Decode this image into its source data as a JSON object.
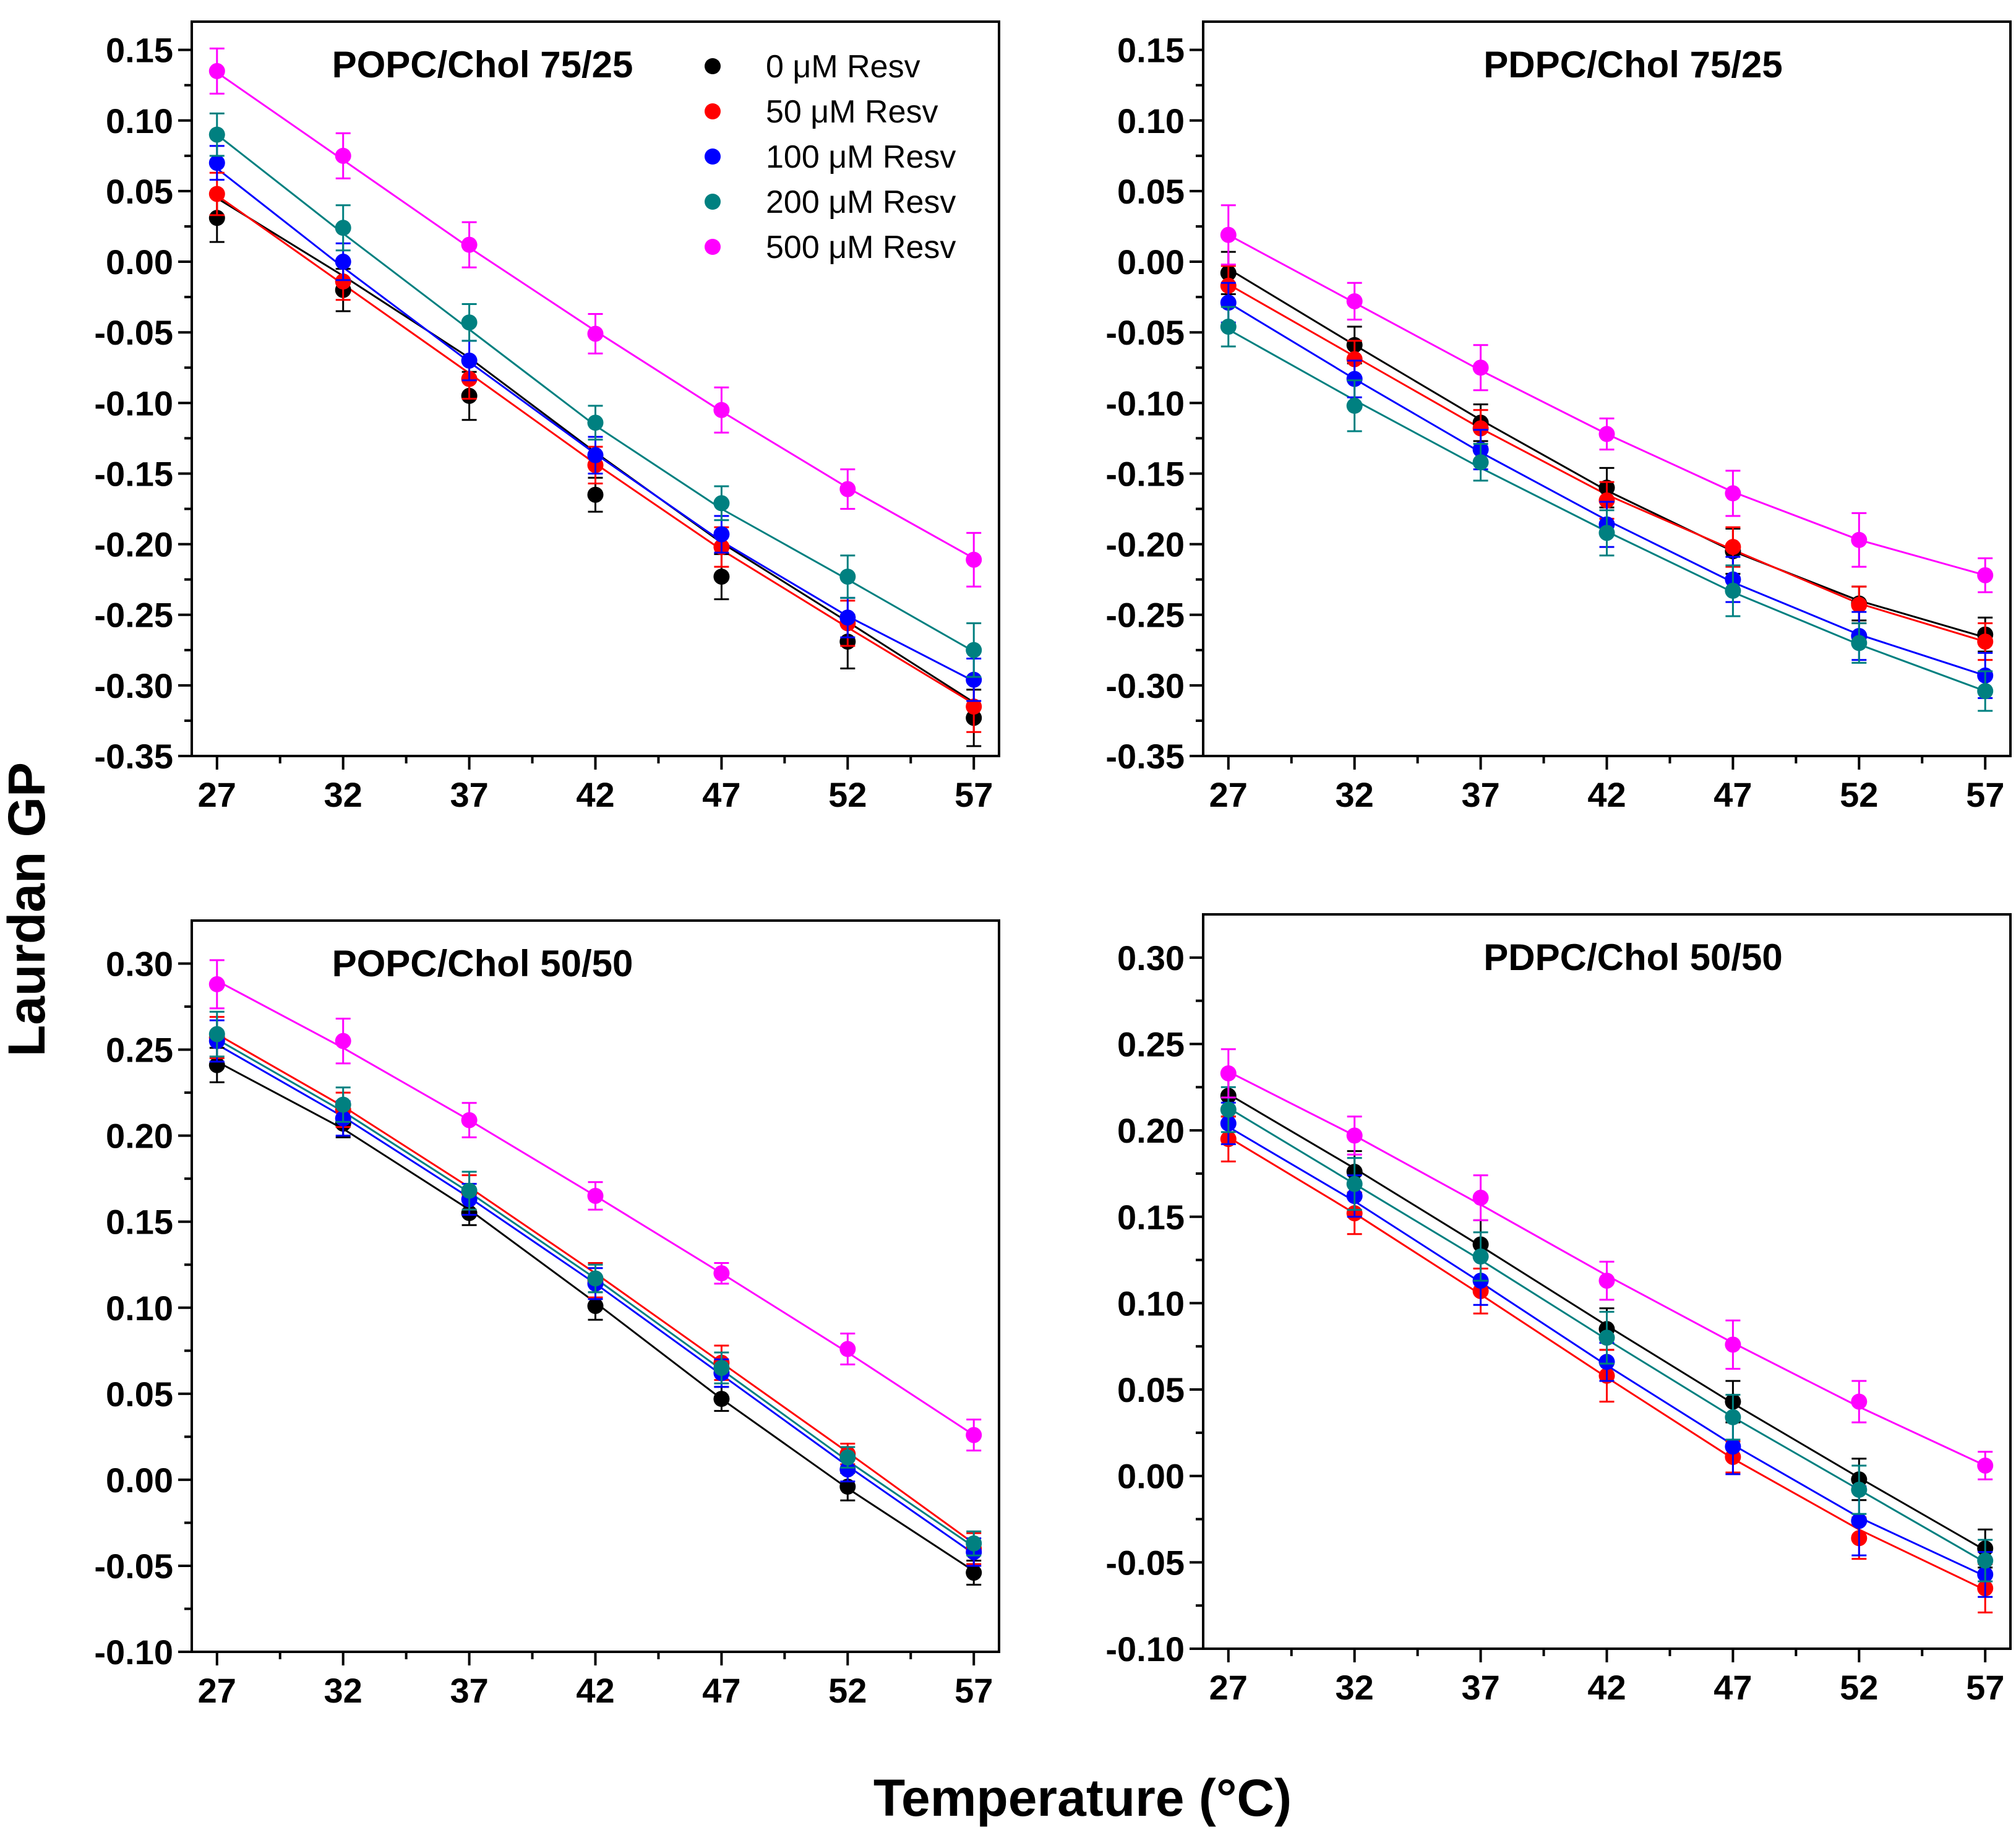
{
  "figure": {
    "ylabel": "Laurdan GP",
    "xlabel": "Temperature (°C)"
  },
  "chart_data": [
    {
      "type": "scatter",
      "title": "POPC/Chol 75/25",
      "x": [
        27,
        32,
        37,
        42,
        47,
        52,
        57
      ],
      "xticks": [
        "27",
        "32",
        "37",
        "42",
        "47",
        "52",
        "57"
      ],
      "xlim": [
        26,
        58
      ],
      "ylim": [
        -0.35,
        0.17
      ],
      "yticks": [
        "0.15",
        "0.10",
        "0.05",
        "0.00",
        "-0.05",
        "-0.10",
        "-0.15",
        "-0.20",
        "-0.25",
        "-0.30",
        "-0.35"
      ],
      "ytick_values": [
        0.15,
        0.1,
        0.05,
        0.0,
        -0.05,
        -0.1,
        -0.15,
        -0.2,
        -0.25,
        -0.3,
        -0.35
      ],
      "legend_position": "top-right",
      "series": [
        {
          "name": "0 μM Resv",
          "color": "#000000",
          "values": [
            0.031,
            -0.02,
            -0.095,
            -0.165,
            -0.223,
            -0.269,
            -0.323
          ],
          "errors": [
            0.017,
            0.015,
            0.017,
            0.012,
            0.016,
            0.019,
            0.02
          ],
          "fit": [
            0.045,
            -0.01,
            -0.068,
            -0.135,
            -0.199,
            -0.255,
            -0.312
          ]
        },
        {
          "name": "50 μM Resv",
          "color": "#ff0000",
          "values": [
            0.048,
            -0.014,
            -0.083,
            -0.144,
            -0.202,
            -0.256,
            -0.315
          ],
          "errors": [
            0.015,
            0.013,
            0.014,
            0.013,
            0.014,
            0.016,
            0.018
          ],
          "fit": [
            0.047,
            -0.016,
            -0.079,
            -0.143,
            -0.204,
            -0.259,
            -0.313
          ]
        },
        {
          "name": "100 μM Resv",
          "color": "#0000ff",
          "values": [
            0.07,
            0.0,
            -0.07,
            -0.137,
            -0.193,
            -0.252,
            -0.296
          ],
          "errors": [
            0.012,
            0.013,
            0.014,
            0.013,
            0.013,
            0.014,
            0.015
          ],
          "fit": [
            0.066,
            -0.004,
            -0.071,
            -0.136,
            -0.198,
            -0.251,
            -0.297
          ]
        },
        {
          "name": "200 μM Resv",
          "color": "#008080",
          "values": [
            0.09,
            0.024,
            -0.043,
            -0.114,
            -0.171,
            -0.223,
            -0.275
          ],
          "errors": [
            0.015,
            0.016,
            0.013,
            0.012,
            0.012,
            0.015,
            0.019
          ],
          "fit": [
            0.09,
            0.02,
            -0.048,
            -0.116,
            -0.175,
            -0.225,
            -0.276
          ]
        },
        {
          "name": "500 μM Resv",
          "color": "#ff00ff",
          "values": [
            0.135,
            0.075,
            0.012,
            -0.051,
            -0.105,
            -0.161,
            -0.211
          ],
          "errors": [
            0.016,
            0.016,
            0.016,
            0.014,
            0.016,
            0.014,
            0.019
          ],
          "fit": [
            0.134,
            0.072,
            0.01,
            -0.049,
            -0.106,
            -0.16,
            -0.21
          ]
        }
      ]
    },
    {
      "type": "scatter",
      "title": "PDPC/Chol 75/25",
      "x": [
        27,
        32,
        37,
        42,
        47,
        52,
        57
      ],
      "xticks": [
        "27",
        "32",
        "37",
        "42",
        "47",
        "52",
        "57"
      ],
      "xlim": [
        26,
        58
      ],
      "ylim": [
        -0.35,
        0.17
      ],
      "yticks": [
        "0.15",
        "0.10",
        "0.05",
        "0.00",
        "-0.05",
        "-0.10",
        "-0.15",
        "-0.20",
        "-0.25",
        "-0.30",
        "-0.35"
      ],
      "ytick_values": [
        0.15,
        0.1,
        0.05,
        0.0,
        -0.05,
        -0.1,
        -0.15,
        -0.2,
        -0.25,
        -0.3,
        -0.35
      ],
      "series": [
        {
          "name": "0 μM Resv",
          "color": "#000000",
          "values": [
            -0.008,
            -0.059,
            -0.114,
            -0.16,
            -0.205,
            -0.242,
            -0.264
          ],
          "errors": [
            0.015,
            0.013,
            0.013,
            0.014,
            0.016,
            0.012,
            0.012
          ],
          "fit": [
            -0.005,
            -0.059,
            -0.112,
            -0.162,
            -0.205,
            -0.24,
            -0.266
          ]
        },
        {
          "name": "50 μM Resv",
          "color": "#ff0000",
          "values": [
            -0.017,
            -0.069,
            -0.118,
            -0.169,
            -0.202,
            -0.243,
            -0.269
          ],
          "errors": [
            0.014,
            0.013,
            0.013,
            0.013,
            0.014,
            0.013,
            0.013
          ],
          "fit": [
            -0.016,
            -0.067,
            -0.118,
            -0.165,
            -0.204,
            -0.242,
            -0.269
          ]
        },
        {
          "name": "100 μM Resv",
          "color": "#0000ff",
          "values": [
            -0.029,
            -0.083,
            -0.133,
            -0.186,
            -0.225,
            -0.265,
            -0.293
          ],
          "errors": [
            0.014,
            0.013,
            0.014,
            0.016,
            0.016,
            0.017,
            0.016
          ],
          "fit": [
            -0.029,
            -0.083,
            -0.135,
            -0.183,
            -0.227,
            -0.264,
            -0.293
          ]
        },
        {
          "name": "200 μM Resv",
          "color": "#008080",
          "values": [
            -0.046,
            -0.102,
            -0.142,
            -0.192,
            -0.233,
            -0.27,
            -0.304
          ],
          "errors": [
            0.014,
            0.018,
            0.013,
            0.016,
            0.018,
            0.014,
            0.014
          ],
          "fit": [
            -0.048,
            -0.098,
            -0.146,
            -0.191,
            -0.234,
            -0.271,
            -0.304
          ]
        },
        {
          "name": "500 μM Resv",
          "color": "#ff00ff",
          "values": [
            0.019,
            -0.028,
            -0.075,
            -0.122,
            -0.164,
            -0.197,
            -0.222
          ],
          "errors": [
            0.021,
            0.013,
            0.016,
            0.011,
            0.016,
            0.019,
            0.012
          ],
          "fit": [
            0.019,
            -0.029,
            -0.077,
            -0.122,
            -0.163,
            -0.197,
            -0.222
          ]
        }
      ]
    },
    {
      "type": "scatter",
      "title": "POPC/Chol 50/50",
      "x": [
        27,
        32,
        37,
        42,
        47,
        52,
        57
      ],
      "xticks": [
        "27",
        "32",
        "37",
        "42",
        "47",
        "52",
        "57"
      ],
      "xlim": [
        26,
        58
      ],
      "ylim": [
        -0.1,
        0.325
      ],
      "yticks": [
        "0.30",
        "0.25",
        "0.20",
        "0.15",
        "0.10",
        "0.05",
        "0.00",
        "-0.05",
        "-0.10"
      ],
      "ytick_values": [
        0.3,
        0.25,
        0.2,
        0.15,
        0.1,
        0.05,
        0.0,
        -0.05,
        -0.1
      ],
      "series": [
        {
          "name": "0 μM Resv",
          "color": "#000000",
          "values": [
            0.241,
            0.207,
            0.155,
            0.101,
            0.047,
            -0.004,
            -0.054
          ],
          "errors": [
            0.01,
            0.008,
            0.007,
            0.008,
            0.007,
            0.008,
            0.007
          ],
          "fit": [
            0.243,
            0.204,
            0.157,
            0.103,
            0.047,
            -0.005,
            -0.053
          ]
        },
        {
          "name": "50 μM Resv",
          "color": "#ff0000",
          "values": [
            0.257,
            0.215,
            0.167,
            0.116,
            0.068,
            0.015,
            -0.04
          ],
          "errors": [
            0.012,
            0.01,
            0.01,
            0.01,
            0.01,
            0.006,
            0.009
          ],
          "fit": [
            0.259,
            0.217,
            0.17,
            0.12,
            0.068,
            0.016,
            -0.037
          ]
        },
        {
          "name": "100 μM Resv",
          "color": "#0000ff",
          "values": [
            0.255,
            0.21,
            0.163,
            0.114,
            0.062,
            0.006,
            -0.042
          ],
          "errors": [
            0.012,
            0.01,
            0.009,
            0.009,
            0.008,
            0.007,
            0.008
          ],
          "fit": [
            0.253,
            0.211,
            0.164,
            0.114,
            0.061,
            0.008,
            -0.043
          ]
        },
        {
          "name": "200 μM Resv",
          "color": "#008080",
          "values": [
            0.259,
            0.218,
            0.168,
            0.117,
            0.065,
            0.013,
            -0.037
          ],
          "errors": [
            0.013,
            0.01,
            0.011,
            0.008,
            0.009,
            0.006,
            0.007
          ],
          "fit": [
            0.256,
            0.214,
            0.167,
            0.117,
            0.064,
            0.011,
            -0.039
          ]
        },
        {
          "name": "500 μM Resv",
          "color": "#ff00ff",
          "values": [
            0.288,
            0.255,
            0.209,
            0.165,
            0.12,
            0.076,
            0.026
          ],
          "errors": [
            0.014,
            0.013,
            0.01,
            0.008,
            0.006,
            0.009,
            0.009
          ],
          "fit": [
            0.29,
            0.251,
            0.209,
            0.165,
            0.12,
            0.074,
            0.026
          ]
        }
      ]
    },
    {
      "type": "scatter",
      "title": "PDPC/Chol 50/50",
      "x": [
        27,
        32,
        37,
        42,
        47,
        52,
        57
      ],
      "xticks": [
        "27",
        "32",
        "37",
        "42",
        "47",
        "52",
        "57"
      ],
      "xlim": [
        26,
        58
      ],
      "ylim": [
        -0.1,
        0.325
      ],
      "yticks": [
        "0.30",
        "0.25",
        "0.20",
        "0.15",
        "0.10",
        "0.05",
        "0.00",
        "-0.05",
        "-0.10"
      ],
      "ytick_values": [
        0.3,
        0.25,
        0.2,
        0.15,
        0.1,
        0.05,
        0.0,
        -0.05,
        -0.1
      ],
      "series": [
        {
          "name": "0 μM Resv",
          "color": "#000000",
          "values": [
            0.22,
            0.176,
            0.134,
            0.085,
            0.043,
            -0.002,
            -0.042
          ],
          "errors": [
            0.012,
            0.012,
            0.014,
            0.012,
            0.012,
            0.012,
            0.011
          ],
          "fit": [
            0.221,
            0.178,
            0.133,
            0.087,
            0.042,
            -0.001,
            -0.043
          ]
        },
        {
          "name": "50 μM Resv",
          "color": "#ff0000",
          "values": [
            0.195,
            0.152,
            0.107,
            0.058,
            0.011,
            -0.036,
            -0.065
          ],
          "errors": [
            0.013,
            0.012,
            0.013,
            0.015,
            0.009,
            0.012,
            0.014
          ],
          "fit": [
            0.196,
            0.152,
            0.105,
            0.057,
            0.01,
            -0.031,
            -0.066
          ]
        },
        {
          "name": "100 μM Resv",
          "color": "#0000ff",
          "values": [
            0.204,
            0.162,
            0.113,
            0.066,
            0.017,
            -0.026,
            -0.057
          ],
          "errors": [
            0.012,
            0.012,
            0.014,
            0.011,
            0.016,
            0.02,
            0.013
          ],
          "fit": [
            0.202,
            0.159,
            0.112,
            0.064,
            0.018,
            -0.024,
            -0.058
          ]
        },
        {
          "name": "200 μM Resv",
          "color": "#008080",
          "values": [
            0.212,
            0.169,
            0.127,
            0.08,
            0.034,
            -0.008,
            -0.049
          ],
          "errors": [
            0.013,
            0.015,
            0.014,
            0.015,
            0.013,
            0.014,
            0.012
          ],
          "fit": [
            0.213,
            0.169,
            0.125,
            0.079,
            0.034,
            -0.008,
            -0.05
          ]
        },
        {
          "name": "500 μM Resv",
          "color": "#ff00ff",
          "values": [
            0.233,
            0.197,
            0.161,
            0.113,
            0.076,
            0.043,
            0.006
          ],
          "errors": [
            0.014,
            0.011,
            0.013,
            0.011,
            0.014,
            0.012,
            0.008
          ],
          "fit": [
            0.234,
            0.197,
            0.157,
            0.116,
            0.077,
            0.04,
            0.006
          ]
        }
      ]
    }
  ]
}
